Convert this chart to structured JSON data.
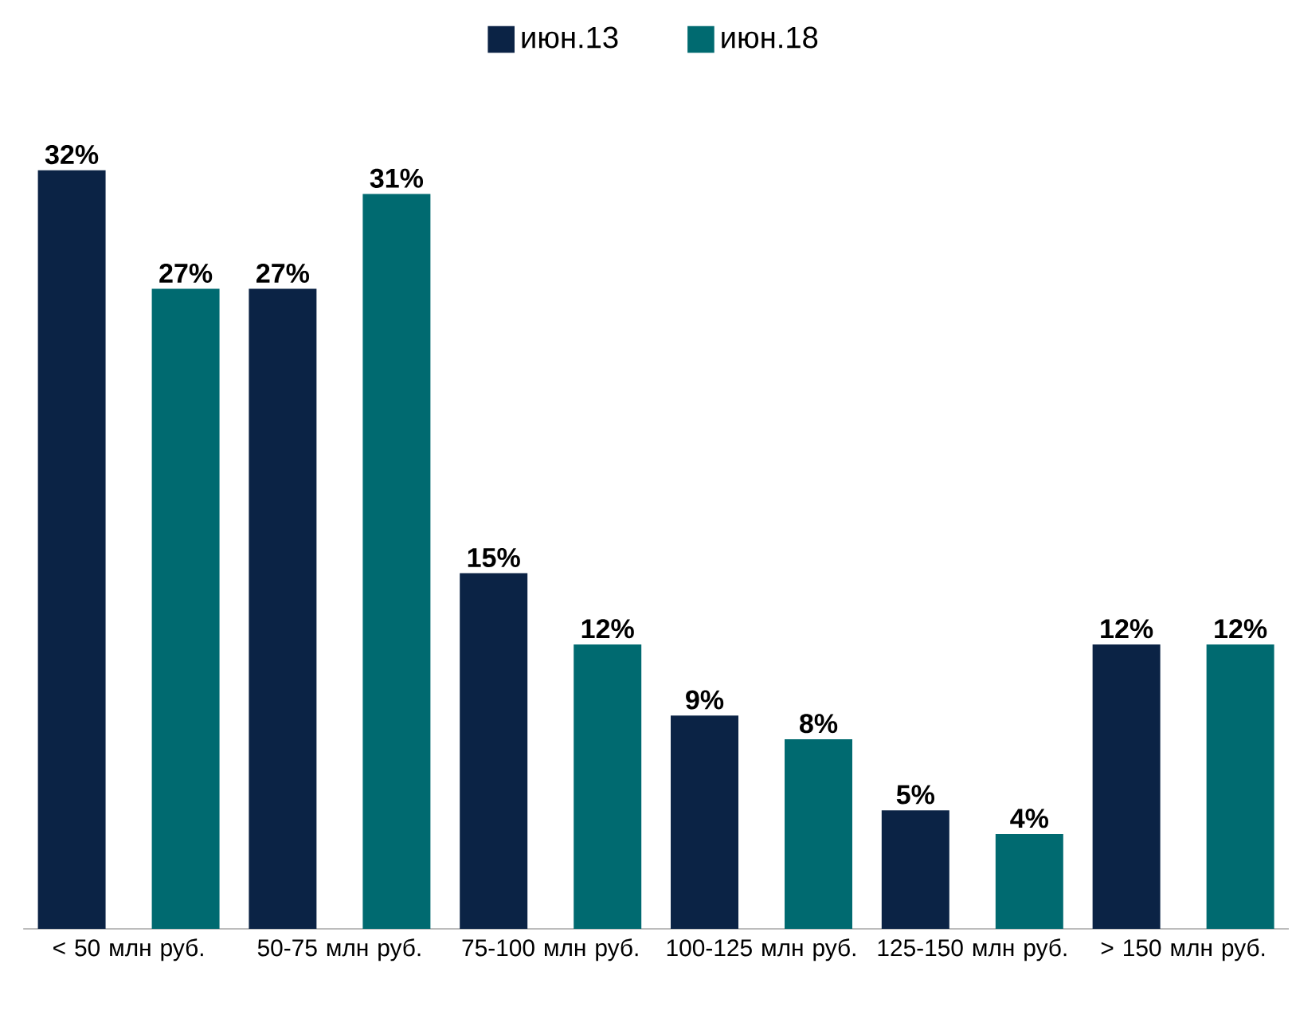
{
  "chart_data": {
    "type": "bar",
    "categories": [
      "< 50 млн руб.",
      "50-75 млн руб.",
      "75-100 млн руб.",
      "100-125 млн руб.",
      "125-150 млн руб.",
      "> 150 млн руб."
    ],
    "series": [
      {
        "name": "июн.13",
        "color": "#0b2345",
        "values": [
          32,
          27,
          15,
          9,
          5,
          12
        ],
        "value_labels": [
          "32%",
          "27%",
          "15%",
          "9%",
          "5%",
          "12%"
        ]
      },
      {
        "name": "июн.18",
        "color": "#006a70",
        "values": [
          27,
          31,
          12,
          8,
          4,
          12
        ],
        "value_labels": [
          "27%",
          "31%",
          "12%",
          "8%",
          "4%",
          "12%"
        ]
      }
    ],
    "legend": "top"
  }
}
